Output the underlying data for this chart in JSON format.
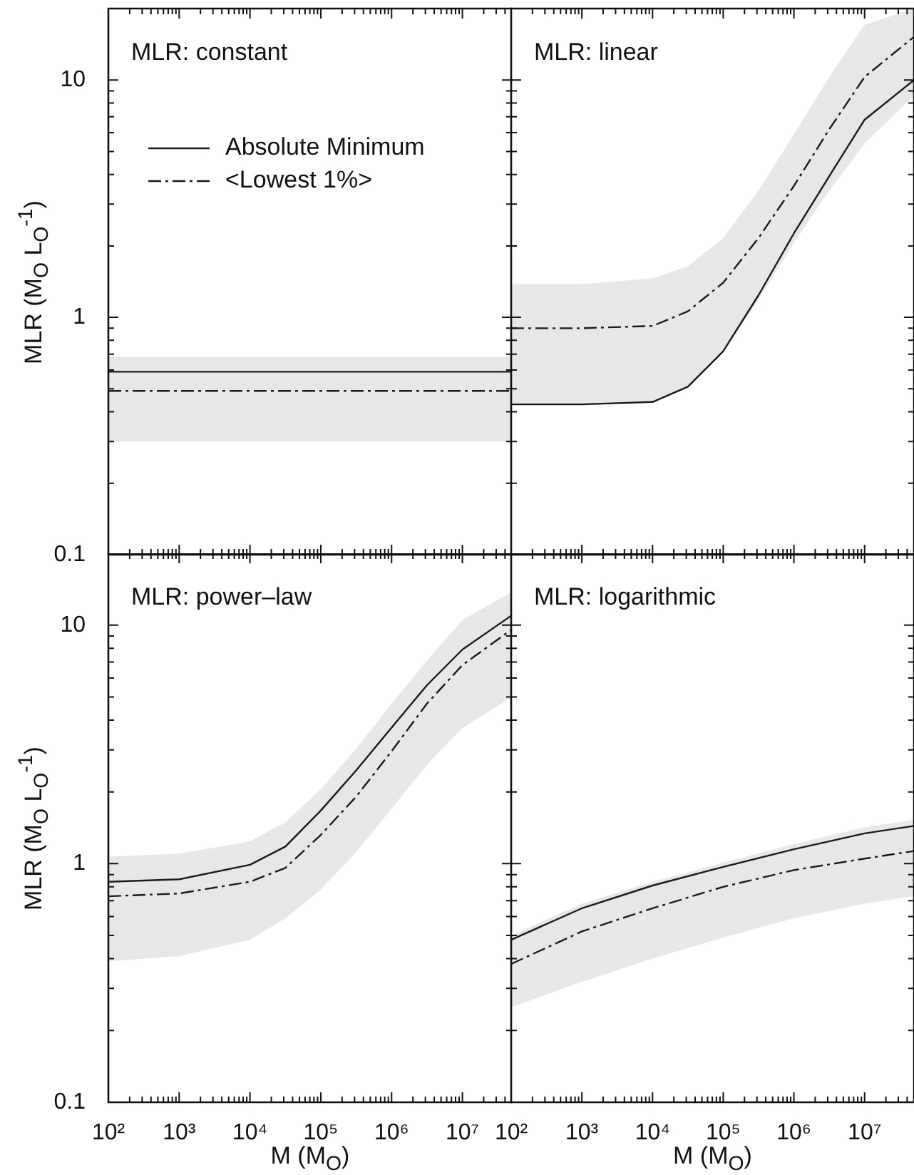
{
  "chart_data": [
    {
      "type": "line",
      "title": "MLR: constant",
      "ylabel": "MLR (M$_{O}$ L$_{O}$$^{-1}$)",
      "log": "xy",
      "tick_labels": "y",
      "legend": "top left",
      "xlim": [
        100,
        50000000
      ],
      "ylim": [
        0.1,
        20
      ],
      "xticks": [
        {
          "value": 100,
          "label": null
        },
        {
          "value": 200,
          "label": null
        },
        {
          "value": 300,
          "label": null
        },
        {
          "value": 400,
          "label": null
        },
        {
          "value": 500,
          "label": null
        },
        {
          "value": 600,
          "label": null
        },
        {
          "value": 700,
          "label": null
        },
        {
          "value": 800,
          "label": null
        },
        {
          "value": 900,
          "label": null
        },
        {
          "value": 1000,
          "label": null
        },
        {
          "value": 2000,
          "label": null
        },
        {
          "value": 3000,
          "label": null
        },
        {
          "value": 4000,
          "label": null
        },
        {
          "value": 5000,
          "label": null
        },
        {
          "value": 6000,
          "label": null
        },
        {
          "value": 7000,
          "label": null
        },
        {
          "value": 8000,
          "label": null
        },
        {
          "value": 9000,
          "label": null
        },
        {
          "value": 10000,
          "label": null
        },
        {
          "value": 20000,
          "label": null
        },
        {
          "value": 30000,
          "label": null
        },
        {
          "value": 40000,
          "label": null
        },
        {
          "value": 50000,
          "label": null
        },
        {
          "value": 60000,
          "label": null
        },
        {
          "value": 70000,
          "label": null
        },
        {
          "value": 80000,
          "label": null
        },
        {
          "value": 90000,
          "label": null
        },
        {
          "value": 100000,
          "label": null
        },
        {
          "value": 200000,
          "label": null
        },
        {
          "value": 300000,
          "label": null
        },
        {
          "value": 400000,
          "label": null
        },
        {
          "value": 500000,
          "label": null
        },
        {
          "value": 600000,
          "label": null
        },
        {
          "value": 700000,
          "label": null
        },
        {
          "value": 800000,
          "label": null
        },
        {
          "value": 900000,
          "label": null
        },
        {
          "value": 1000000,
          "label": null
        },
        {
          "value": 2000000,
          "label": null
        },
        {
          "value": 3000000,
          "label": null
        },
        {
          "value": 4000000,
          "label": null
        },
        {
          "value": 5000000,
          "label": null
        },
        {
          "value": 6000000,
          "label": null
        },
        {
          "value": 7000000,
          "label": null
        },
        {
          "value": 8000000,
          "label": null
        },
        {
          "value": 9000000,
          "label": null
        },
        {
          "value": 10000000,
          "label": null
        },
        {
          "value": 20000000,
          "label": null
        },
        {
          "value": 30000000,
          "label": null
        },
        {
          "value": 40000000,
          "label": null
        }
      ],
      "yticks": [
        0.1,
        {
          "value": 0.2,
          "label": null
        },
        {
          "value": 0.3,
          "label": null
        },
        {
          "value": 0.4,
          "label": null
        },
        {
          "value": 0.5,
          "label": null
        },
        {
          "value": 0.6,
          "label": null
        },
        {
          "value": 0.7,
          "label": null
        },
        {
          "value": 0.8,
          "label": null
        },
        {
          "value": 0.9,
          "label": null
        },
        1,
        {
          "value": 2,
          "label": null
        },
        {
          "value": 3,
          "label": null
        },
        {
          "value": 4,
          "label": null
        },
        {
          "value": 5,
          "label": null
        },
        {
          "value": 6,
          "label": null
        },
        {
          "value": 7,
          "label": null
        },
        {
          "value": 8,
          "label": null
        },
        {
          "value": 9,
          "label": null
        },
        10,
        {
          "value": 20,
          "label": null
        }
      ],
      "series": [
        {
          "name": "Absolute Minimum",
          "color": "#1a1a1a",
          "line_style": "solid",
          "x": [
            100,
            50000000
          ],
          "values": [
            0.59,
            0.59
          ]
        },
        {
          "name": "<Lowest 1%>",
          "color": "#1a1a1a",
          "line_style": "dashdot",
          "x": [
            100,
            50000000
          ],
          "values": [
            0.49,
            0.49
          ],
          "lower": [
            0.3,
            0.3
          ],
          "upper": [
            0.68,
            0.68
          ]
        }
      ]
    },
    {
      "type": "line",
      "title": "MLR: linear",
      "log": "xy",
      "tick_labels": false,
      "xlim": [
        100,
        50000000
      ],
      "ylim": [
        0.1,
        20
      ],
      "xticks": [
        {
          "value": 100,
          "label": null
        },
        {
          "value": 200,
          "label": null
        },
        {
          "value": 300,
          "label": null
        },
        {
          "value": 400,
          "label": null
        },
        {
          "value": 500,
          "label": null
        },
        {
          "value": 600,
          "label": null
        },
        {
          "value": 700,
          "label": null
        },
        {
          "value": 800,
          "label": null
        },
        {
          "value": 900,
          "label": null
        },
        {
          "value": 1000,
          "label": null
        },
        {
          "value": 2000,
          "label": null
        },
        {
          "value": 3000,
          "label": null
        },
        {
          "value": 4000,
          "label": null
        },
        {
          "value": 5000,
          "label": null
        },
        {
          "value": 6000,
          "label": null
        },
        {
          "value": 7000,
          "label": null
        },
        {
          "value": 8000,
          "label": null
        },
        {
          "value": 9000,
          "label": null
        },
        {
          "value": 10000,
          "label": null
        },
        {
          "value": 20000,
          "label": null
        },
        {
          "value": 30000,
          "label": null
        },
        {
          "value": 40000,
          "label": null
        },
        {
          "value": 50000,
          "label": null
        },
        {
          "value": 60000,
          "label": null
        },
        {
          "value": 70000,
          "label": null
        },
        {
          "value": 80000,
          "label": null
        },
        {
          "value": 90000,
          "label": null
        },
        {
          "value": 100000,
          "label": null
        },
        {
          "value": 200000,
          "label": null
        },
        {
          "value": 300000,
          "label": null
        },
        {
          "value": 400000,
          "label": null
        },
        {
          "value": 500000,
          "label": null
        },
        {
          "value": 600000,
          "label": null
        },
        {
          "value": 700000,
          "label": null
        },
        {
          "value": 800000,
          "label": null
        },
        {
          "value": 900000,
          "label": null
        },
        {
          "value": 1000000,
          "label": null
        },
        {
          "value": 2000000,
          "label": null
        },
        {
          "value": 3000000,
          "label": null
        },
        {
          "value": 4000000,
          "label": null
        },
        {
          "value": 5000000,
          "label": null
        },
        {
          "value": 6000000,
          "label": null
        },
        {
          "value": 7000000,
          "label": null
        },
        {
          "value": 8000000,
          "label": null
        },
        {
          "value": 9000000,
          "label": null
        },
        {
          "value": 10000000,
          "label": null
        },
        {
          "value": 20000000,
          "label": null
        },
        {
          "value": 30000000,
          "label": null
        },
        {
          "value": 40000000,
          "label": null
        }
      ],
      "yticks": [
        {
          "value": 0.1,
          "label": null
        },
        {
          "value": 0.2,
          "label": null
        },
        {
          "value": 0.3,
          "label": null
        },
        {
          "value": 0.4,
          "label": null
        },
        {
          "value": 0.5,
          "label": null
        },
        {
          "value": 0.6,
          "label": null
        },
        {
          "value": 0.7,
          "label": null
        },
        {
          "value": 0.8,
          "label": null
        },
        {
          "value": 0.9,
          "label": null
        },
        {
          "value": 1,
          "label": null
        },
        {
          "value": 2,
          "label": null
        },
        {
          "value": 3,
          "label": null
        },
        {
          "value": 4,
          "label": null
        },
        {
          "value": 5,
          "label": null
        },
        {
          "value": 6,
          "label": null
        },
        {
          "value": 7,
          "label": null
        },
        {
          "value": 8,
          "label": null
        },
        {
          "value": 9,
          "label": null
        },
        {
          "value": 10,
          "label": null
        },
        {
          "value": 20,
          "label": null
        }
      ],
      "series": [
        {
          "color": "#1a1a1a",
          "line_style": "solid",
          "x": [
            100,
            1000,
            10000,
            31600,
            100000,
            316000,
            1000000,
            3160000,
            10000000,
            50000000
          ],
          "values": [
            0.43,
            0.43,
            0.44,
            0.51,
            0.72,
            1.24,
            2.26,
            3.93,
            6.8,
            10
          ]
        },
        {
          "color": "#1a1a1a",
          "line_style": "dashdot",
          "x": [
            100,
            1000,
            10000,
            31600,
            100000,
            316000,
            1000000,
            3160000,
            10000000,
            50000000
          ],
          "values": [
            0.9,
            0.9,
            0.92,
            1.06,
            1.4,
            2.16,
            3.58,
            6.2,
            10.3,
            15.2
          ],
          "lower": [
            0.43,
            0.43,
            0.44,
            0.51,
            0.72,
            1.19,
            2.06,
            3.42,
            5.4,
            8.6
          ],
          "upper": [
            1.38,
            1.38,
            1.46,
            1.64,
            2.16,
            3.42,
            5.9,
            10.3,
            17.1,
            20
          ]
        }
      ]
    },
    {
      "type": "line",
      "title": "MLR: power–law",
      "xlabel": "M (M$_{O}$)",
      "ylabel": "MLR (M$_{O}$ L$_{O}$$^{-1}$)",
      "log": "xy",
      "xlim": [
        100,
        50000000
      ],
      "ylim": [
        0.1,
        20
      ],
      "xticks": [
        {
          "value": 100,
          "label": "10²"
        },
        {
          "value": 200,
          "label": null
        },
        {
          "value": 300,
          "label": null
        },
        {
          "value": 400,
          "label": null
        },
        {
          "value": 500,
          "label": null
        },
        {
          "value": 600,
          "label": null
        },
        {
          "value": 700,
          "label": null
        },
        {
          "value": 800,
          "label": null
        },
        {
          "value": 900,
          "label": null
        },
        {
          "value": 1000,
          "label": "10³"
        },
        {
          "value": 2000,
          "label": null
        },
        {
          "value": 3000,
          "label": null
        },
        {
          "value": 4000,
          "label": null
        },
        {
          "value": 5000,
          "label": null
        },
        {
          "value": 6000,
          "label": null
        },
        {
          "value": 7000,
          "label": null
        },
        {
          "value": 8000,
          "label": null
        },
        {
          "value": 9000,
          "label": null
        },
        {
          "value": 10000,
          "label": "10⁴"
        },
        {
          "value": 20000,
          "label": null
        },
        {
          "value": 30000,
          "label": null
        },
        {
          "value": 40000,
          "label": null
        },
        {
          "value": 50000,
          "label": null
        },
        {
          "value": 60000,
          "label": null
        },
        {
          "value": 70000,
          "label": null
        },
        {
          "value": 80000,
          "label": null
        },
        {
          "value": 90000,
          "label": null
        },
        {
          "value": 100000,
          "label": "10⁵"
        },
        {
          "value": 200000,
          "label": null
        },
        {
          "value": 300000,
          "label": null
        },
        {
          "value": 400000,
          "label": null
        },
        {
          "value": 500000,
          "label": null
        },
        {
          "value": 600000,
          "label": null
        },
        {
          "value": 700000,
          "label": null
        },
        {
          "value": 800000,
          "label": null
        },
        {
          "value": 900000,
          "label": null
        },
        {
          "value": 1000000,
          "label": "10⁶"
        },
        {
          "value": 2000000,
          "label": null
        },
        {
          "value": 3000000,
          "label": null
        },
        {
          "value": 4000000,
          "label": null
        },
        {
          "value": 5000000,
          "label": null
        },
        {
          "value": 6000000,
          "label": null
        },
        {
          "value": 7000000,
          "label": null
        },
        {
          "value": 8000000,
          "label": null
        },
        {
          "value": 9000000,
          "label": null
        },
        {
          "value": 10000000,
          "label": "10⁷"
        },
        {
          "value": 20000000,
          "label": null
        },
        {
          "value": 30000000,
          "label": null
        },
        {
          "value": 40000000,
          "label": null
        }
      ],
      "yticks": [
        0.1,
        {
          "value": 0.2,
          "label": null
        },
        {
          "value": 0.3,
          "label": null
        },
        {
          "value": 0.4,
          "label": null
        },
        {
          "value": 0.5,
          "label": null
        },
        {
          "value": 0.6,
          "label": null
        },
        {
          "value": 0.7,
          "label": null
        },
        {
          "value": 0.8,
          "label": null
        },
        {
          "value": 0.9,
          "label": null
        },
        1,
        {
          "value": 2,
          "label": null
        },
        {
          "value": 3,
          "label": null
        },
        {
          "value": 4,
          "label": null
        },
        {
          "value": 5,
          "label": null
        },
        {
          "value": 6,
          "label": null
        },
        {
          "value": 7,
          "label": null
        },
        {
          "value": 8,
          "label": null
        },
        {
          "value": 9,
          "label": null
        },
        10,
        {
          "value": 20,
          "label": null
        }
      ],
      "series": [
        {
          "color": "#1a1a1a",
          "line_style": "solid",
          "x": [
            100,
            1000,
            10000,
            31600,
            100000,
            316000,
            1000000,
            3160000,
            10000000,
            50000000
          ],
          "values": [
            0.84,
            0.86,
            0.99,
            1.18,
            1.67,
            2.46,
            3.72,
            5.6,
            7.9,
            11.0
          ]
        },
        {
          "color": "#1a1a1a",
          "line_style": "dashdot",
          "x": [
            100,
            1000,
            10000,
            31600,
            100000,
            316000,
            1000000,
            3160000,
            10000000,
            50000000
          ],
          "values": [
            0.73,
            0.75,
            0.84,
            0.96,
            1.32,
            1.91,
            2.96,
            4.69,
            6.8,
            9.6
          ],
          "lower": [
            0.39,
            0.41,
            0.48,
            0.59,
            0.78,
            1.12,
            1.7,
            2.6,
            3.7,
            5.0
          ],
          "upper": [
            1.07,
            1.1,
            1.24,
            1.49,
            2.05,
            3.03,
            4.69,
            7.1,
            10.5,
            13.8
          ]
        }
      ]
    },
    {
      "type": "line",
      "title": "MLR: logarithmic",
      "xlabel": "M (M$_{O}$)",
      "log": "xy",
      "tick_labels": "x",
      "xlim": [
        100,
        50000000
      ],
      "ylim": [
        0.1,
        20
      ],
      "xticks": [
        {
          "value": 100,
          "label": "10²"
        },
        {
          "value": 200,
          "label": null
        },
        {
          "value": 300,
          "label": null
        },
        {
          "value": 400,
          "label": null
        },
        {
          "value": 500,
          "label": null
        },
        {
          "value": 600,
          "label": null
        },
        {
          "value": 700,
          "label": null
        },
        {
          "value": 800,
          "label": null
        },
        {
          "value": 900,
          "label": null
        },
        {
          "value": 1000,
          "label": "10³"
        },
        {
          "value": 2000,
          "label": null
        },
        {
          "value": 3000,
          "label": null
        },
        {
          "value": 4000,
          "label": null
        },
        {
          "value": 5000,
          "label": null
        },
        {
          "value": 6000,
          "label": null
        },
        {
          "value": 7000,
          "label": null
        },
        {
          "value": 8000,
          "label": null
        },
        {
          "value": 9000,
          "label": null
        },
        {
          "value": 10000,
          "label": "10⁴"
        },
        {
          "value": 20000,
          "label": null
        },
        {
          "value": 30000,
          "label": null
        },
        {
          "value": 40000,
          "label": null
        },
        {
          "value": 50000,
          "label": null
        },
        {
          "value": 60000,
          "label": null
        },
        {
          "value": 70000,
          "label": null
        },
        {
          "value": 80000,
          "label": null
        },
        {
          "value": 90000,
          "label": null
        },
        {
          "value": 100000,
          "label": "10⁵"
        },
        {
          "value": 200000,
          "label": null
        },
        {
          "value": 300000,
          "label": null
        },
        {
          "value": 400000,
          "label": null
        },
        {
          "value": 500000,
          "label": null
        },
        {
          "value": 600000,
          "label": null
        },
        {
          "value": 700000,
          "label": null
        },
        {
          "value": 800000,
          "label": null
        },
        {
          "value": 900000,
          "label": null
        },
        {
          "value": 1000000,
          "label": "10⁶"
        },
        {
          "value": 2000000,
          "label": null
        },
        {
          "value": 3000000,
          "label": null
        },
        {
          "value": 4000000,
          "label": null
        },
        {
          "value": 5000000,
          "label": null
        },
        {
          "value": 6000000,
          "label": null
        },
        {
          "value": 7000000,
          "label": null
        },
        {
          "value": 8000000,
          "label": null
        },
        {
          "value": 9000000,
          "label": null
        },
        {
          "value": 10000000,
          "label": "10⁷"
        },
        {
          "value": 20000000,
          "label": null
        },
        {
          "value": 30000000,
          "label": null
        },
        {
          "value": 40000000,
          "label": null
        }
      ],
      "yticks": [
        {
          "value": 0.1,
          "label": null
        },
        {
          "value": 0.2,
          "label": null
        },
        {
          "value": 0.3,
          "label": null
        },
        {
          "value": 0.4,
          "label": null
        },
        {
          "value": 0.5,
          "label": null
        },
        {
          "value": 0.6,
          "label": null
        },
        {
          "value": 0.7,
          "label": null
        },
        {
          "value": 0.8,
          "label": null
        },
        {
          "value": 0.9,
          "label": null
        },
        {
          "value": 1,
          "label": null
        },
        {
          "value": 2,
          "label": null
        },
        {
          "value": 3,
          "label": null
        },
        {
          "value": 4,
          "label": null
        },
        {
          "value": 5,
          "label": null
        },
        {
          "value": 6,
          "label": null
        },
        {
          "value": 7,
          "label": null
        },
        {
          "value": 8,
          "label": null
        },
        {
          "value": 9,
          "label": null
        },
        {
          "value": 10,
          "label": null
        },
        {
          "value": 20,
          "label": null
        }
      ],
      "series": [
        {
          "color": "#1a1a1a",
          "line_style": "solid",
          "x": [
            100,
            1000,
            10000,
            100000,
            1000000,
            10000000,
            50000000
          ],
          "values": [
            0.48,
            0.65,
            0.81,
            0.97,
            1.15,
            1.34,
            1.44
          ]
        },
        {
          "color": "#1a1a1a",
          "line_style": "dashdot",
          "x": [
            100,
            1000,
            10000,
            100000,
            1000000,
            10000000,
            50000000
          ],
          "values": [
            0.38,
            0.52,
            0.65,
            0.8,
            0.94,
            1.05,
            1.13
          ],
          "lower": [
            0.25,
            0.32,
            0.4,
            0.49,
            0.59,
            0.68,
            0.73
          ],
          "upper": [
            0.5,
            0.68,
            0.84,
            1.01,
            1.21,
            1.42,
            1.53
          ]
        }
      ]
    }
  ]
}
